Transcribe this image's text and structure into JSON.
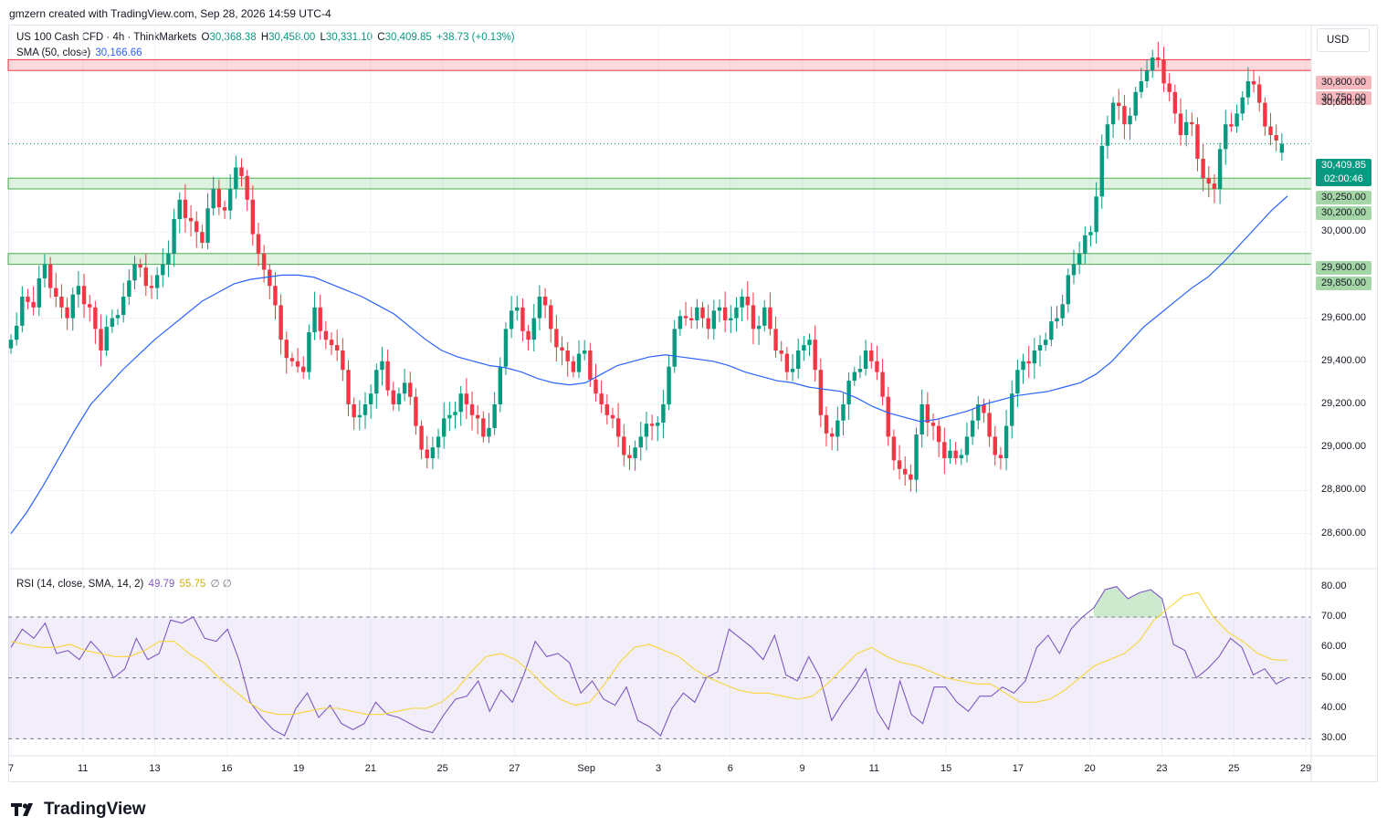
{
  "header": {
    "creator_line": "gmzern created with TradingView.com, Sep 28, 2026 14:59 UTC-4"
  },
  "legend": {
    "symbol": "US 100 Cash CFD · 4h · ThinkMarkets",
    "o_label": "O",
    "o_value": "30,368.38",
    "h_label": "H",
    "h_value": "30,458.00",
    "l_label": "L",
    "l_value": "30,331.10",
    "c_label": "C",
    "c_value": "30,409.85",
    "change": "+38.73 (+0.13%)",
    "sma_label": "SMA (50, close)",
    "sma_value": "30,166.66",
    "rsi_label": "RSI (14, close, SMA, 14, 2)",
    "rsi_value": "49.79",
    "rsi_sma_value": "55.75",
    "rsi_extra": "∅ ∅"
  },
  "currency_button": "USD",
  "price_labels": {
    "r1": "30,800.00",
    "r2": "30,750.00",
    "last": "30,409.85",
    "countdown": "02:00:46",
    "s1": "30,250.00",
    "s2": "30,200.00",
    "s3": "29,900.00",
    "s4": "29,850.00"
  },
  "colors": {
    "up": "#089981",
    "down": "#f23645",
    "sma": "#2962ff",
    "rsi": "#7e57c2",
    "rsi_sma": "#f7d53a",
    "resistance": "#f23645",
    "support": "#4caf50"
  },
  "branding": {
    "logo_text": "TradingView"
  },
  "chart_data": [
    {
      "type": "candlestick",
      "title": "US 100 Cash CFD · 4h · ThinkMarkets",
      "ylim": [
        28450,
        30950
      ],
      "y_ticks": [
        "30,600.00",
        "30,000.00",
        "29,600.00",
        "29,400.00",
        "29,200.00",
        "29,000.00",
        "28,800.00",
        "28,600.00"
      ],
      "x_ticks": [
        "7",
        "11",
        "13",
        "16",
        "19",
        "21",
        "25",
        "27",
        "Sep",
        "3",
        "6",
        "9",
        "11",
        "15",
        "17",
        "20",
        "23",
        "25",
        "29"
      ],
      "close_path": [
        29500,
        29700,
        29650,
        29850,
        29700,
        29600,
        29750,
        29650,
        29450,
        29600,
        29700,
        29850,
        29750,
        29800,
        29900,
        30150,
        30050,
        29950,
        30200,
        30100,
        30300,
        30150,
        29900,
        29750,
        29500,
        29400,
        29350,
        29650,
        29500,
        29450,
        29200,
        29150,
        29250,
        29400,
        29200,
        29300,
        29100,
        28950,
        29050,
        29150,
        29250,
        29150,
        29050,
        29200,
        29550,
        29650,
        29500,
        29700,
        29550,
        29450,
        29350,
        29450,
        29250,
        29150,
        29050,
        28950,
        29050,
        29100,
        29200,
        29550,
        29600,
        29650,
        29550,
        29650,
        29600,
        29700,
        29550,
        29650,
        29450,
        29350,
        29450,
        29500,
        29150,
        29050,
        29200,
        29350,
        29450,
        29350,
        29050,
        28900,
        28850,
        29200,
        29100,
        28950,
        28950,
        29050,
        29200,
        29050,
        28950,
        29250,
        29400,
        29450,
        29500,
        29600,
        29800,
        29900,
        30000,
        30400,
        30600,
        30500,
        30650,
        30750,
        30800,
        30650,
        30450,
        30500,
        30250,
        30200,
        30500,
        30550,
        30700,
        30600,
        30450,
        30400
      ],
      "current": {
        "open": 30368.38,
        "high": 30458.0,
        "low": 30331.1,
        "close": 30409.85,
        "change": 38.73,
        "change_pct": 0.13
      },
      "sma50_path": [
        28600,
        28700,
        28820,
        28950,
        29080,
        29200,
        29280,
        29360,
        29430,
        29500,
        29560,
        29620,
        29680,
        29720,
        29760,
        29780,
        29790,
        29800,
        29800,
        29790,
        29760,
        29730,
        29700,
        29660,
        29620,
        29560,
        29500,
        29450,
        29420,
        29400,
        29380,
        29370,
        29350,
        29320,
        29300,
        29290,
        29300,
        29340,
        29380,
        29400,
        29420,
        29430,
        29420,
        29410,
        29400,
        29380,
        29350,
        29330,
        29310,
        29300,
        29280,
        29270,
        29260,
        29230,
        29190,
        29160,
        29140,
        29120,
        29130,
        29150,
        29170,
        29200,
        29220,
        29240,
        29250,
        29260,
        29280,
        29300,
        29340,
        29400,
        29480,
        29560,
        29620,
        29680,
        29740,
        29790,
        29860,
        29940,
        30020,
        30100,
        30166.66
      ],
      "sma_last": 30166.66,
      "resistance_zone": [
        30750,
        30800
      ],
      "support_zones": [
        [
          30200,
          30250
        ],
        [
          29850,
          29900
        ]
      ],
      "last_price": 30409.85
    },
    {
      "type": "line",
      "title": "RSI (14, close, SMA, 14, 2)",
      "ylim": [
        25,
        85
      ],
      "y_ticks": [
        "80.00",
        "70.00",
        "60.00",
        "50.00",
        "40.00",
        "30.00"
      ],
      "bands": {
        "upper": 70,
        "middle": 50,
        "lower": 30
      },
      "rsi_path": [
        60,
        66,
        63,
        68,
        58,
        59,
        56,
        62,
        58,
        50,
        53,
        63,
        56,
        58,
        69,
        68,
        70,
        63,
        62,
        66,
        56,
        42,
        37,
        33,
        31,
        40,
        45,
        37,
        41,
        35,
        33,
        35,
        42,
        38,
        37,
        35,
        33,
        32,
        38,
        43,
        44,
        49,
        39,
        46,
        42,
        51,
        62,
        57,
        58,
        55,
        45,
        49,
        43,
        41,
        47,
        36,
        34,
        31,
        40,
        45,
        42,
        50,
        52,
        66,
        63,
        60,
        56,
        64,
        51,
        49,
        57,
        50,
        36,
        42,
        47,
        53,
        39,
        33,
        49,
        38,
        35,
        47,
        47,
        42,
        39,
        44,
        44,
        47,
        45,
        49,
        60,
        64,
        58,
        66,
        70,
        73,
        79,
        80,
        76,
        78,
        79,
        76,
        61,
        59,
        50,
        53,
        57,
        63,
        60,
        51,
        53,
        48,
        50
      ],
      "rsi_last": 49.79,
      "rsi_sma_path": [
        62,
        61,
        60,
        60,
        61,
        59,
        58,
        57,
        57,
        59,
        62,
        62,
        58,
        55,
        50,
        46,
        42,
        39,
        38,
        38,
        39,
        40,
        40,
        39,
        38,
        38,
        39,
        40,
        40,
        42,
        46,
        52,
        57,
        58,
        56,
        52,
        47,
        43,
        41,
        42,
        48,
        55,
        60,
        61,
        59,
        57,
        53,
        50,
        48,
        46,
        45,
        45,
        44,
        43,
        44,
        48,
        53,
        58,
        60,
        57,
        55,
        54,
        52,
        50,
        49,
        48,
        48,
        45,
        42,
        42,
        43,
        46,
        50,
        54,
        56,
        58,
        62,
        69,
        73,
        77,
        78,
        70,
        65,
        62,
        58,
        56,
        55.75
      ],
      "rsi_sma_last": 55.75
    }
  ]
}
